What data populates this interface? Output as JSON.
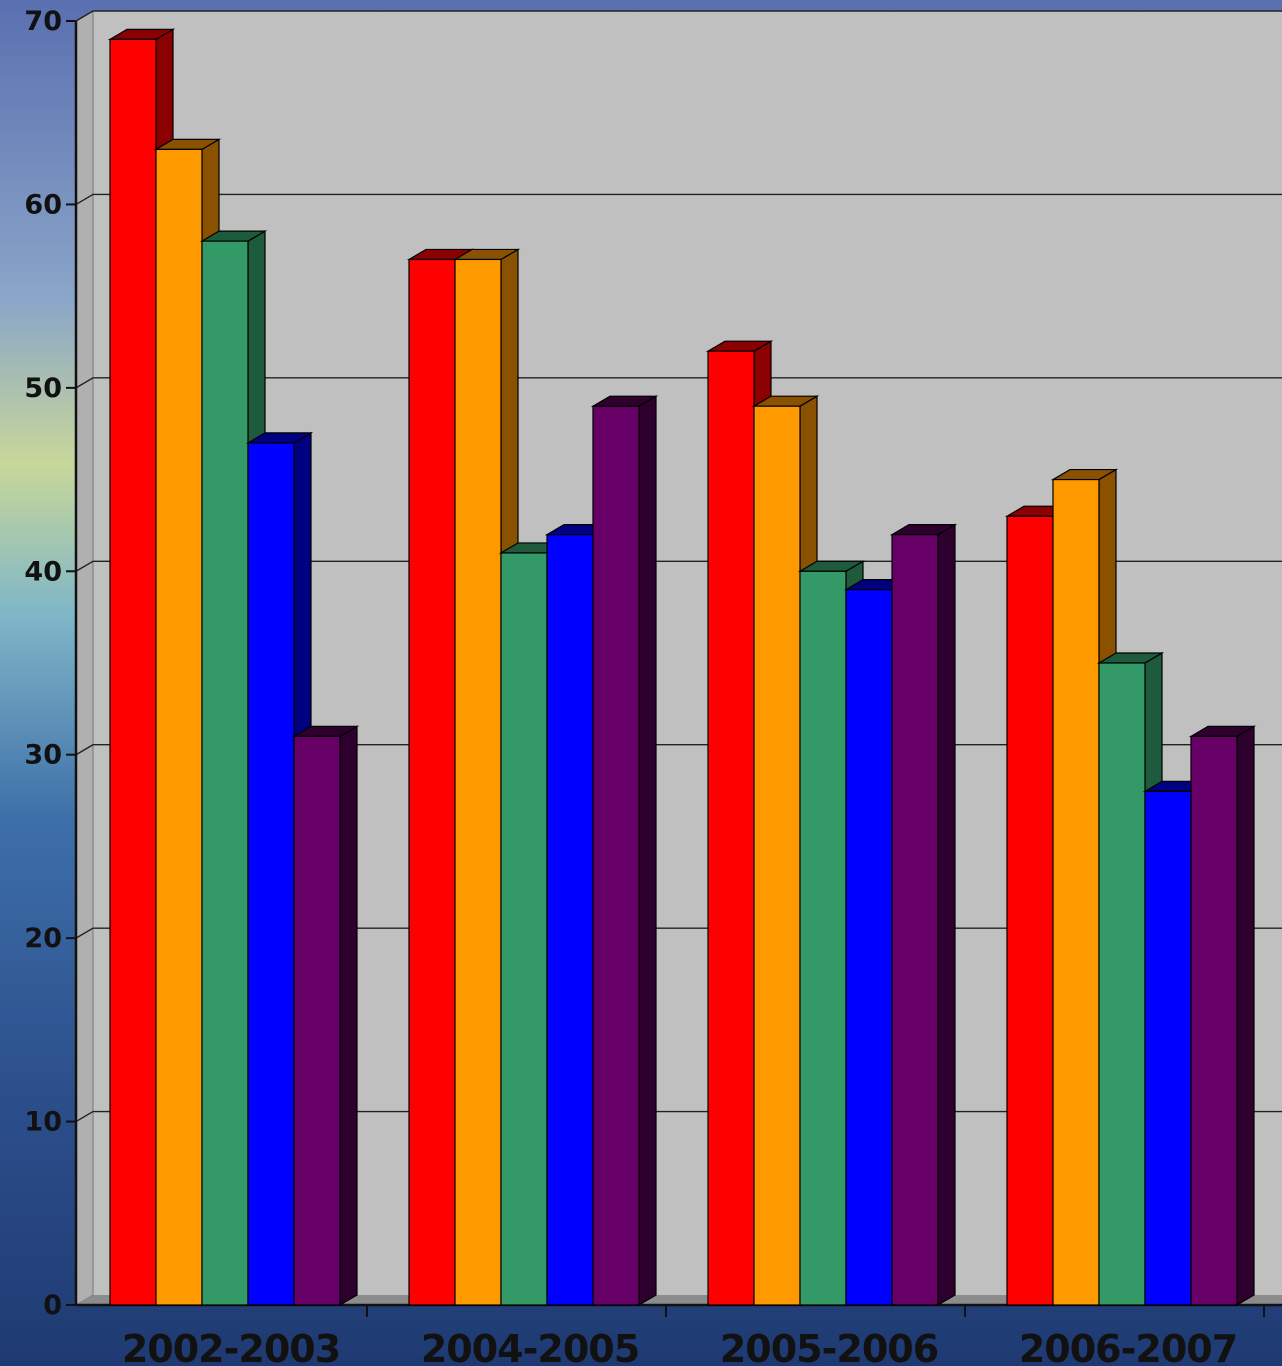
{
  "chart_data": {
    "type": "bar",
    "categories": [
      "2002-2003",
      "2004-2005",
      "2005-2006",
      "2006-2007"
    ],
    "series": [
      {
        "values": [
          69,
          57,
          52,
          43
        ],
        "color": "#ff0000",
        "side": "#8b0000"
      },
      {
        "values": [
          63,
          57,
          49,
          45
        ],
        "color": "#ff9900",
        "side": "#8a5200"
      },
      {
        "values": [
          58,
          41,
          40,
          35
        ],
        "color": "#339966",
        "side": "#1e5a3c"
      },
      {
        "values": [
          47,
          42,
          39,
          28
        ],
        "color": "#0000ff",
        "side": "#000080"
      },
      {
        "values": [
          31,
          49,
          42,
          31
        ],
        "color": "#660066",
        "side": "#2e002e"
      }
    ],
    "yticks": [
      "0",
      "10",
      "20",
      "30",
      "40",
      "50",
      "60",
      "70"
    ],
    "ylim": [
      0,
      70
    ],
    "grid": true,
    "plot_background": "#c0c0c0"
  }
}
